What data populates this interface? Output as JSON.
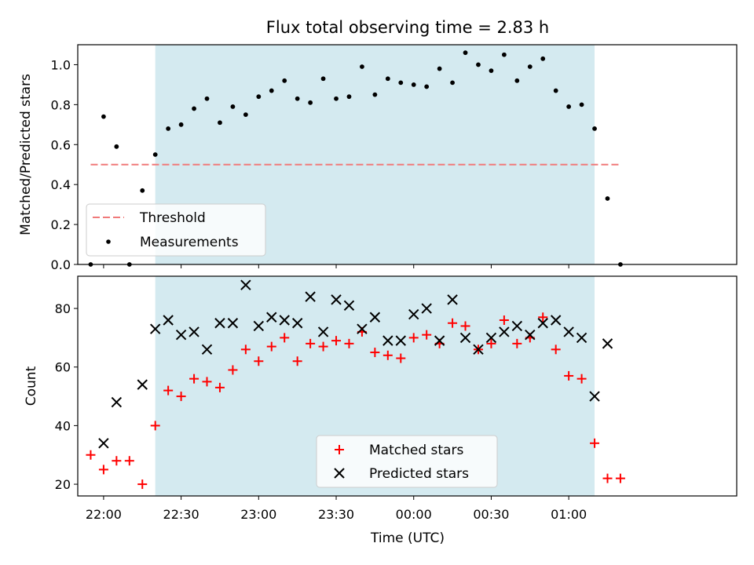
{
  "chart_data": [
    {
      "type": "scatter",
      "title": "Flux total observing time = 2.83 h",
      "xlabel": "",
      "ylabel": "Matched/Predicted stars",
      "xlim": [
        "21:50",
        "02:05"
      ],
      "ylim": [
        0,
        1.1
      ],
      "xticks": [
        "22:00",
        "22:30",
        "23:00",
        "23:30",
        "00:00",
        "00:30",
        "01:00"
      ],
      "yticks": [
        "0.0",
        "0.2",
        "0.4",
        "0.6",
        "0.8",
        "1.0"
      ],
      "shaded_region": [
        "22:20",
        "01:10"
      ],
      "shade_color": "#d4eaf0",
      "threshold": {
        "name": "Threshold",
        "y": 0.5,
        "x_range": [
          "21:55",
          "01:20"
        ],
        "color": "#f07a7a",
        "style": "dashed"
      },
      "series": [
        {
          "name": "Measurements",
          "marker": "dot",
          "color": "#000000",
          "x": [
            "21:55",
            "22:00",
            "22:05",
            "22:10",
            "22:15",
            "22:20",
            "22:25",
            "22:30",
            "22:35",
            "22:40",
            "22:45",
            "22:50",
            "22:55",
            "23:00",
            "23:05",
            "23:10",
            "23:15",
            "23:20",
            "23:25",
            "23:30",
            "23:35",
            "23:40",
            "23:45",
            "23:50",
            "23:55",
            "00:00",
            "00:05",
            "00:10",
            "00:15",
            "00:20",
            "00:25",
            "00:30",
            "00:35",
            "00:40",
            "00:45",
            "00:50",
            "00:55",
            "01:00",
            "01:05",
            "01:10",
            "01:15",
            "01:20"
          ],
          "y": [
            0.0,
            0.74,
            0.59,
            0.0,
            0.37,
            0.55,
            0.68,
            0.7,
            0.78,
            0.83,
            0.71,
            0.79,
            0.75,
            0.84,
            0.87,
            0.92,
            0.83,
            0.81,
            0.93,
            0.83,
            0.84,
            0.99,
            0.85,
            0.93,
            0.91,
            0.9,
            0.89,
            0.98,
            0.91,
            1.06,
            1.0,
            0.97,
            1.05,
            0.92,
            0.99,
            1.03,
            0.87,
            0.79,
            0.8,
            0.68,
            0.33,
            0.0
          ]
        }
      ],
      "legend": "lower-left"
    },
    {
      "type": "scatter",
      "title": "",
      "xlabel": "Time (UTC)",
      "ylabel": "Count",
      "xlim": [
        "21:50",
        "02:05"
      ],
      "ylim": [
        16,
        91
      ],
      "xticks": [
        "22:00",
        "22:30",
        "23:00",
        "23:30",
        "00:00",
        "00:30",
        "01:00"
      ],
      "yticks": [
        "20",
        "40",
        "60",
        "80"
      ],
      "shaded_region": [
        "22:20",
        "01:10"
      ],
      "shade_color": "#d4eaf0",
      "series": [
        {
          "name": "Matched stars",
          "marker": "plus",
          "color": "#ff0000",
          "x": [
            "21:55",
            "22:00",
            "22:05",
            "22:10",
            "22:15",
            "22:20",
            "22:25",
            "22:30",
            "22:35",
            "22:40",
            "22:45",
            "22:50",
            "22:55",
            "23:00",
            "23:05",
            "23:10",
            "23:15",
            "23:20",
            "23:25",
            "23:30",
            "23:35",
            "23:40",
            "23:45",
            "23:50",
            "23:55",
            "00:00",
            "00:05",
            "00:10",
            "00:15",
            "00:20",
            "00:25",
            "00:30",
            "00:35",
            "00:40",
            "00:45",
            "00:50",
            "00:55",
            "01:00",
            "01:05",
            "01:10",
            "01:15",
            "01:20"
          ],
          "y": [
            30,
            25,
            28,
            28,
            20,
            40,
            52,
            50,
            56,
            55,
            53,
            59,
            66,
            62,
            67,
            70,
            62,
            68,
            67,
            69,
            68,
            72,
            65,
            64,
            63,
            70,
            71,
            68,
            75,
            74,
            66,
            68,
            76,
            68,
            70,
            77,
            66,
            57,
            56,
            34,
            22,
            22
          ]
        },
        {
          "name": "Predicted stars",
          "marker": "x",
          "color": "#000000",
          "x": [
            "22:00",
            "22:05",
            "22:15",
            "22:20",
            "22:25",
            "22:30",
            "22:35",
            "22:40",
            "22:45",
            "22:50",
            "22:55",
            "23:00",
            "23:05",
            "23:10",
            "23:15",
            "23:20",
            "23:25",
            "23:30",
            "23:35",
            "23:40",
            "23:45",
            "23:50",
            "23:55",
            "00:00",
            "00:05",
            "00:10",
            "00:15",
            "00:20",
            "00:25",
            "00:30",
            "00:35",
            "00:40",
            "00:45",
            "00:50",
            "00:55",
            "01:00",
            "01:05",
            "01:10",
            "01:15"
          ],
          "y": [
            34,
            48,
            54,
            73,
            76,
            71,
            72,
            66,
            75,
            75,
            88,
            74,
            77,
            76,
            75,
            84,
            72,
            83,
            81,
            73,
            77,
            69,
            69,
            78,
            80,
            69,
            83,
            70,
            66,
            70,
            72,
            74,
            71,
            75,
            76,
            72,
            70,
            50,
            68
          ]
        }
      ],
      "legend": "lower-center"
    }
  ]
}
